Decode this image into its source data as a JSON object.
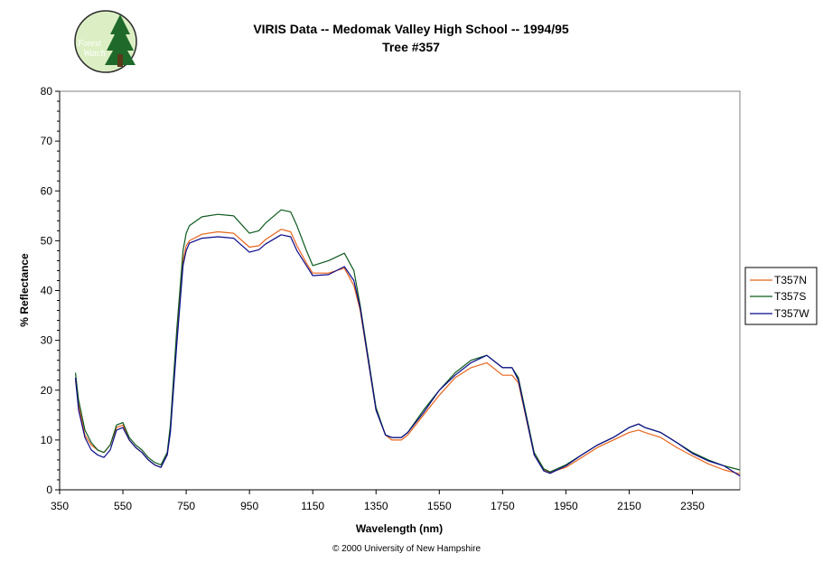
{
  "logo": {
    "line1": "Forest",
    "line2": "Watch",
    "icon": "forest-watch-logo"
  },
  "copyright": "© 2000 University of New Hampshire",
  "colors": {
    "T357N": "#e8641b",
    "T357S": "#0d5a1e",
    "T357W": "#0a0a8c"
  },
  "chart_data": {
    "type": "line",
    "title": "VIRIS Data -- Medomak Valley High School -- 1994/95",
    "subtitle": "Tree #357",
    "xlabel": "Wavelength (nm)",
    "ylabel": "% Reflectance",
    "xlim": [
      350,
      2500
    ],
    "ylim": [
      0,
      80
    ],
    "xticks": [
      "350",
      "550",
      "750",
      "950",
      "1150",
      "1350",
      "1550",
      "1750",
      "1950",
      "2150",
      "2350"
    ],
    "yticks": [
      "0",
      "10",
      "20",
      "30",
      "40",
      "50",
      "60",
      "70",
      "80"
    ],
    "grid": false,
    "legend": "right",
    "series": [
      {
        "name": "T357N",
        "x": [
          400,
          410,
          430,
          450,
          470,
          490,
          510,
          530,
          550,
          570,
          590,
          610,
          630,
          650,
          670,
          690,
          700,
          720,
          740,
          750,
          760,
          800,
          850,
          900,
          950,
          980,
          1000,
          1050,
          1080,
          1100,
          1130,
          1150,
          1200,
          1250,
          1280,
          1300,
          1350,
          1380,
          1400,
          1430,
          1450,
          1500,
          1550,
          1600,
          1650,
          1700,
          1750,
          1780,
          1800,
          1850,
          1880,
          1900,
          1950,
          2000,
          2050,
          2100,
          2150,
          2180,
          2200,
          2250,
          2300,
          2350,
          2400,
          2450,
          2500
        ],
        "y": [
          22,
          17,
          11,
          9,
          8,
          7.5,
          9,
          12.5,
          13,
          10,
          8.5,
          7.5,
          6,
          5,
          4.5,
          7,
          12,
          30,
          46,
          49,
          50,
          51.3,
          51.8,
          51.5,
          48.7,
          49,
          50.2,
          52.3,
          51.8,
          49,
          45.5,
          43.5,
          43.5,
          44.5,
          41,
          36,
          16,
          11,
          10,
          10,
          11,
          15,
          19,
          22.5,
          24.5,
          25.5,
          23,
          23,
          21.5,
          7,
          4,
          3.5,
          4.5,
          6.5,
          8.5,
          10,
          11.5,
          12,
          11.5,
          10.5,
          8.5,
          6.8,
          5.2,
          4,
          3.2
        ]
      },
      {
        "name": "T357S",
        "x": [
          400,
          410,
          430,
          450,
          470,
          490,
          510,
          530,
          550,
          570,
          590,
          610,
          630,
          650,
          670,
          690,
          700,
          720,
          740,
          750,
          760,
          800,
          850,
          900,
          950,
          980,
          1000,
          1050,
          1080,
          1100,
          1130,
          1150,
          1200,
          1250,
          1280,
          1300,
          1350,
          1380,
          1400,
          1430,
          1450,
          1500,
          1550,
          1600,
          1650,
          1700,
          1750,
          1780,
          1800,
          1850,
          1880,
          1900,
          1950,
          2000,
          2050,
          2100,
          2150,
          2180,
          2200,
          2250,
          2300,
          2350,
          2400,
          2450,
          2500
        ],
        "y": [
          23.5,
          18,
          12,
          9.5,
          8,
          7.5,
          9,
          13,
          13.5,
          10.5,
          9,
          8,
          6.5,
          5.5,
          5,
          7.5,
          13,
          32,
          48,
          51.5,
          53,
          54.8,
          55.3,
          55,
          51.5,
          52,
          53.5,
          56.2,
          55.8,
          53,
          48,
          45,
          46,
          47.5,
          44,
          37,
          16.5,
          11,
          10.5,
          10.5,
          11.5,
          16,
          20,
          23.5,
          26,
          27,
          24.5,
          24.5,
          22.5,
          7.5,
          4.2,
          3.6,
          5,
          7,
          9,
          10.5,
          12.5,
          13.2,
          12.5,
          11.5,
          9.5,
          7.5,
          6,
          4.8,
          4
        ]
      },
      {
        "name": "T357W",
        "x": [
          400,
          410,
          430,
          450,
          470,
          490,
          510,
          530,
          550,
          570,
          590,
          610,
          630,
          650,
          670,
          690,
          700,
          720,
          740,
          750,
          760,
          800,
          850,
          900,
          950,
          980,
          1000,
          1050,
          1080,
          1100,
          1130,
          1150,
          1200,
          1250,
          1280,
          1300,
          1350,
          1380,
          1400,
          1430,
          1450,
          1500,
          1550,
          1600,
          1650,
          1700,
          1750,
          1780,
          1800,
          1850,
          1880,
          1900,
          1950,
          2000,
          2050,
          2100,
          2150,
          2180,
          2200,
          2250,
          2300,
          2350,
          2400,
          2450,
          2500
        ],
        "y": [
          22.5,
          16,
          10.5,
          8,
          7,
          6.5,
          8,
          12,
          12.5,
          10,
          8.5,
          7.5,
          6,
          5,
          4.5,
          7,
          11.5,
          29,
          45,
          48,
          49.5,
          50.5,
          50.8,
          50.5,
          47.7,
          48.2,
          49.3,
          51.2,
          50.8,
          48,
          45,
          43,
          43.2,
          44.8,
          42,
          36.5,
          16,
          11,
          10.5,
          10.5,
          11.5,
          15.5,
          20,
          23,
          25.5,
          27,
          24.5,
          24.5,
          22,
          7,
          3.8,
          3.3,
          4.8,
          7,
          9,
          10.5,
          12.5,
          13.2,
          12.5,
          11.5,
          9.5,
          7.3,
          5.8,
          4.8,
          2.8
        ]
      }
    ]
  }
}
